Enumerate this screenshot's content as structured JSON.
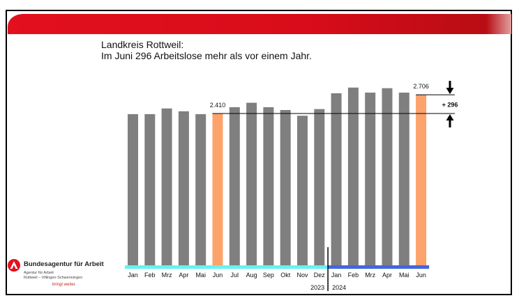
{
  "header": {
    "title_line1": "Landkreis Rottweil:",
    "title_line2": "Im Juni 296 Arbeitslose mehr als vor einem Jahr."
  },
  "logo": {
    "name": "Bundesagentur für Arbeit",
    "sub1": "Agentur für Arbeit",
    "sub2": "Rottweil – Villingen-Schwenningen",
    "slogan": "bringt weiter."
  },
  "colors": {
    "bar": "#7f7f7f",
    "highlight": "#fca36b",
    "year2023": "#66f2f2",
    "year2024": "#4466dd",
    "banner": "#e3101f"
  },
  "chart_data": {
    "type": "bar",
    "title": "Im Juni 296 Arbeitslose mehr als vor einem Jahr.",
    "categories": [
      "Jan",
      "Feb",
      "Mrz",
      "Apr",
      "Mai",
      "Jun",
      "Jul",
      "Aug",
      "Sep",
      "Okt",
      "Nov",
      "Dez",
      "Jan",
      "Feb",
      "Mrz",
      "Apr",
      "Mai",
      "Jun"
    ],
    "years": [
      {
        "label": "2023",
        "count": 12
      },
      {
        "label": "2024",
        "count": 6
      }
    ],
    "values": [
      2400,
      2400,
      2490,
      2445,
      2400,
      2410,
      2510,
      2580,
      2510,
      2465,
      2375,
      2480,
      2730,
      2820,
      2740,
      2810,
      2740,
      2706
    ],
    "highlight_indices": [
      5,
      17
    ],
    "data_labels": [
      {
        "index": 5,
        "text": "2.410"
      },
      {
        "index": 17,
        "text": "2.706"
      }
    ],
    "difference_label": "+ 296",
    "ylim": [
      0,
      2900
    ],
    "xlabel": "",
    "ylabel": "",
    "grid": false
  }
}
